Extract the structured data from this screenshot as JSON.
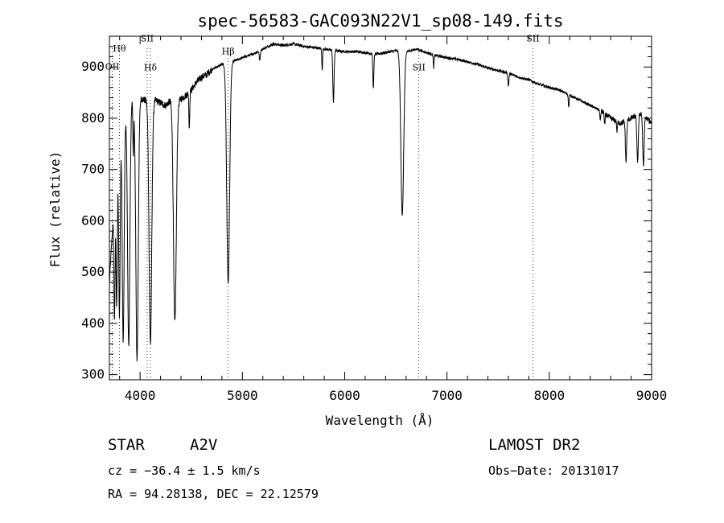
{
  "chart_data": {
    "type": "line",
    "title": "spec-56583-GAC093N22V1_sp08-149.fits",
    "xlabel": "Wavelength (Å)",
    "ylabel": "Flux (relative)",
    "xlim": [
      3700,
      9000
    ],
    "ylim": [
      290,
      960
    ],
    "x_ticks": [
      4000,
      5000,
      6000,
      7000,
      8000,
      9000
    ],
    "x_tick_labels": [
      "4000",
      "5000",
      "6000",
      "7000",
      "8000",
      "9000"
    ],
    "y_ticks": [
      300,
      400,
      500,
      600,
      700,
      800,
      900
    ],
    "y_tick_labels": [
      "300",
      "400",
      "500",
      "600",
      "700",
      "800",
      "900"
    ],
    "grid": false,
    "line_color": "#000000",
    "continuum": [
      [
        3700,
        480
      ],
      [
        3750,
        650
      ],
      [
        3800,
        750
      ],
      [
        3850,
        800
      ],
      [
        3900,
        830
      ],
      [
        3950,
        840
      ],
      [
        4000,
        840
      ],
      [
        4050,
        835
      ],
      [
        4100,
        830
      ],
      [
        4150,
        835
      ],
      [
        4200,
        830
      ],
      [
        4250,
        825
      ],
      [
        4300,
        835
      ],
      [
        4350,
        830
      ],
      [
        4400,
        838
      ],
      [
        4450,
        845
      ],
      [
        4500,
        855
      ],
      [
        4550,
        870
      ],
      [
        4600,
        880
      ],
      [
        4650,
        885
      ],
      [
        4700,
        895
      ],
      [
        4750,
        900
      ],
      [
        4800,
        905
      ],
      [
        4900,
        910
      ],
      [
        5000,
        918
      ],
      [
        5100,
        925
      ],
      [
        5200,
        935
      ],
      [
        5300,
        945
      ],
      [
        5400,
        942
      ],
      [
        5500,
        945
      ],
      [
        5600,
        940
      ],
      [
        5700,
        938
      ],
      [
        5800,
        935
      ],
      [
        5900,
        932
      ],
      [
        6000,
        930
      ],
      [
        6100,
        930
      ],
      [
        6200,
        928
      ],
      [
        6300,
        925
      ],
      [
        6400,
        928
      ],
      [
        6500,
        932
      ],
      [
        6600,
        930
      ],
      [
        6700,
        935
      ],
      [
        6800,
        928
      ],
      [
        6900,
        922
      ],
      [
        7000,
        918
      ],
      [
        7100,
        915
      ],
      [
        7200,
        910
      ],
      [
        7300,
        905
      ],
      [
        7400,
        898
      ],
      [
        7500,
        893
      ],
      [
        7600,
        888
      ],
      [
        7700,
        880
      ],
      [
        7800,
        875
      ],
      [
        7900,
        866
      ],
      [
        8000,
        860
      ],
      [
        8100,
        855
      ],
      [
        8200,
        845
      ],
      [
        8300,
        835
      ],
      [
        8400,
        825
      ],
      [
        8500,
        815
      ],
      [
        8600,
        800
      ],
      [
        8700,
        790
      ],
      [
        8800,
        800
      ],
      [
        8900,
        810
      ],
      [
        9000,
        790
      ]
    ],
    "absorption_lines": [
      {
        "center": 3750,
        "depth": 240,
        "width": 6
      },
      {
        "center": 3771,
        "depth": 260,
        "width": 6
      },
      {
        "center": 3798,
        "depth": 330,
        "width": 7
      },
      {
        "center": 3835,
        "depth": 420,
        "width": 9
      },
      {
        "center": 3889,
        "depth": 470,
        "width": 11
      },
      {
        "center": 3934,
        "depth": 110,
        "width": 4
      },
      {
        "center": 3970,
        "depth": 510,
        "width": 12
      },
      {
        "center": 4101,
        "depth": 470,
        "width": 13
      },
      {
        "center": 4340,
        "depth": 430,
        "width": 14
      },
      {
        "center": 4481,
        "depth": 70,
        "width": 4
      },
      {
        "center": 4861,
        "depth": 430,
        "width": 14
      },
      {
        "center": 5170,
        "depth": 20,
        "width": 5
      },
      {
        "center": 5780,
        "depth": 40,
        "width": 4
      },
      {
        "center": 5890,
        "depth": 100,
        "width": 6
      },
      {
        "center": 6280,
        "depth": 65,
        "width": 5
      },
      {
        "center": 6563,
        "depth": 320,
        "width": 14
      },
      {
        "center": 6870,
        "depth": 25,
        "width": 4
      },
      {
        "center": 7600,
        "depth": 25,
        "width": 5
      },
      {
        "center": 8190,
        "depth": 25,
        "width": 4
      },
      {
        "center": 8498,
        "depth": 20,
        "width": 4
      },
      {
        "center": 8542,
        "depth": 22,
        "width": 4
      },
      {
        "center": 8662,
        "depth": 20,
        "width": 4
      },
      {
        "center": 8750,
        "depth": 80,
        "width": 6
      },
      {
        "center": 8863,
        "depth": 90,
        "width": 7
      },
      {
        "center": 8920,
        "depth": 100,
        "width": 7
      }
    ],
    "line_markers": [
      {
        "label": "Hθ",
        "wavelength": 3798,
        "label_flux": 930
      },
      {
        "label": "OII",
        "wavelength": 3728,
        "label_flux": 895
      },
      {
        "label": "SII",
        "wavelength": 4069,
        "label_flux": 950
      },
      {
        "label": "Hδ",
        "wavelength": 4101,
        "label_flux": 893
      },
      {
        "label": "Hβ",
        "wavelength": 4861,
        "label_flux": 925
      },
      {
        "label": "SII",
        "wavelength": 6725,
        "label_flux": 893
      },
      {
        "label": "SII",
        "wavelength": 7840,
        "label_flux": 950
      }
    ]
  },
  "footer": {
    "object_type": "STAR",
    "subclass": "A2V",
    "survey": "LAMOST DR2",
    "redshift": "cz = −36.4 ± 1.5 km/s",
    "obs_date": "Obs−Date: 20131017",
    "coords": "RA =  94.28138, DEC =  22.12579"
  }
}
